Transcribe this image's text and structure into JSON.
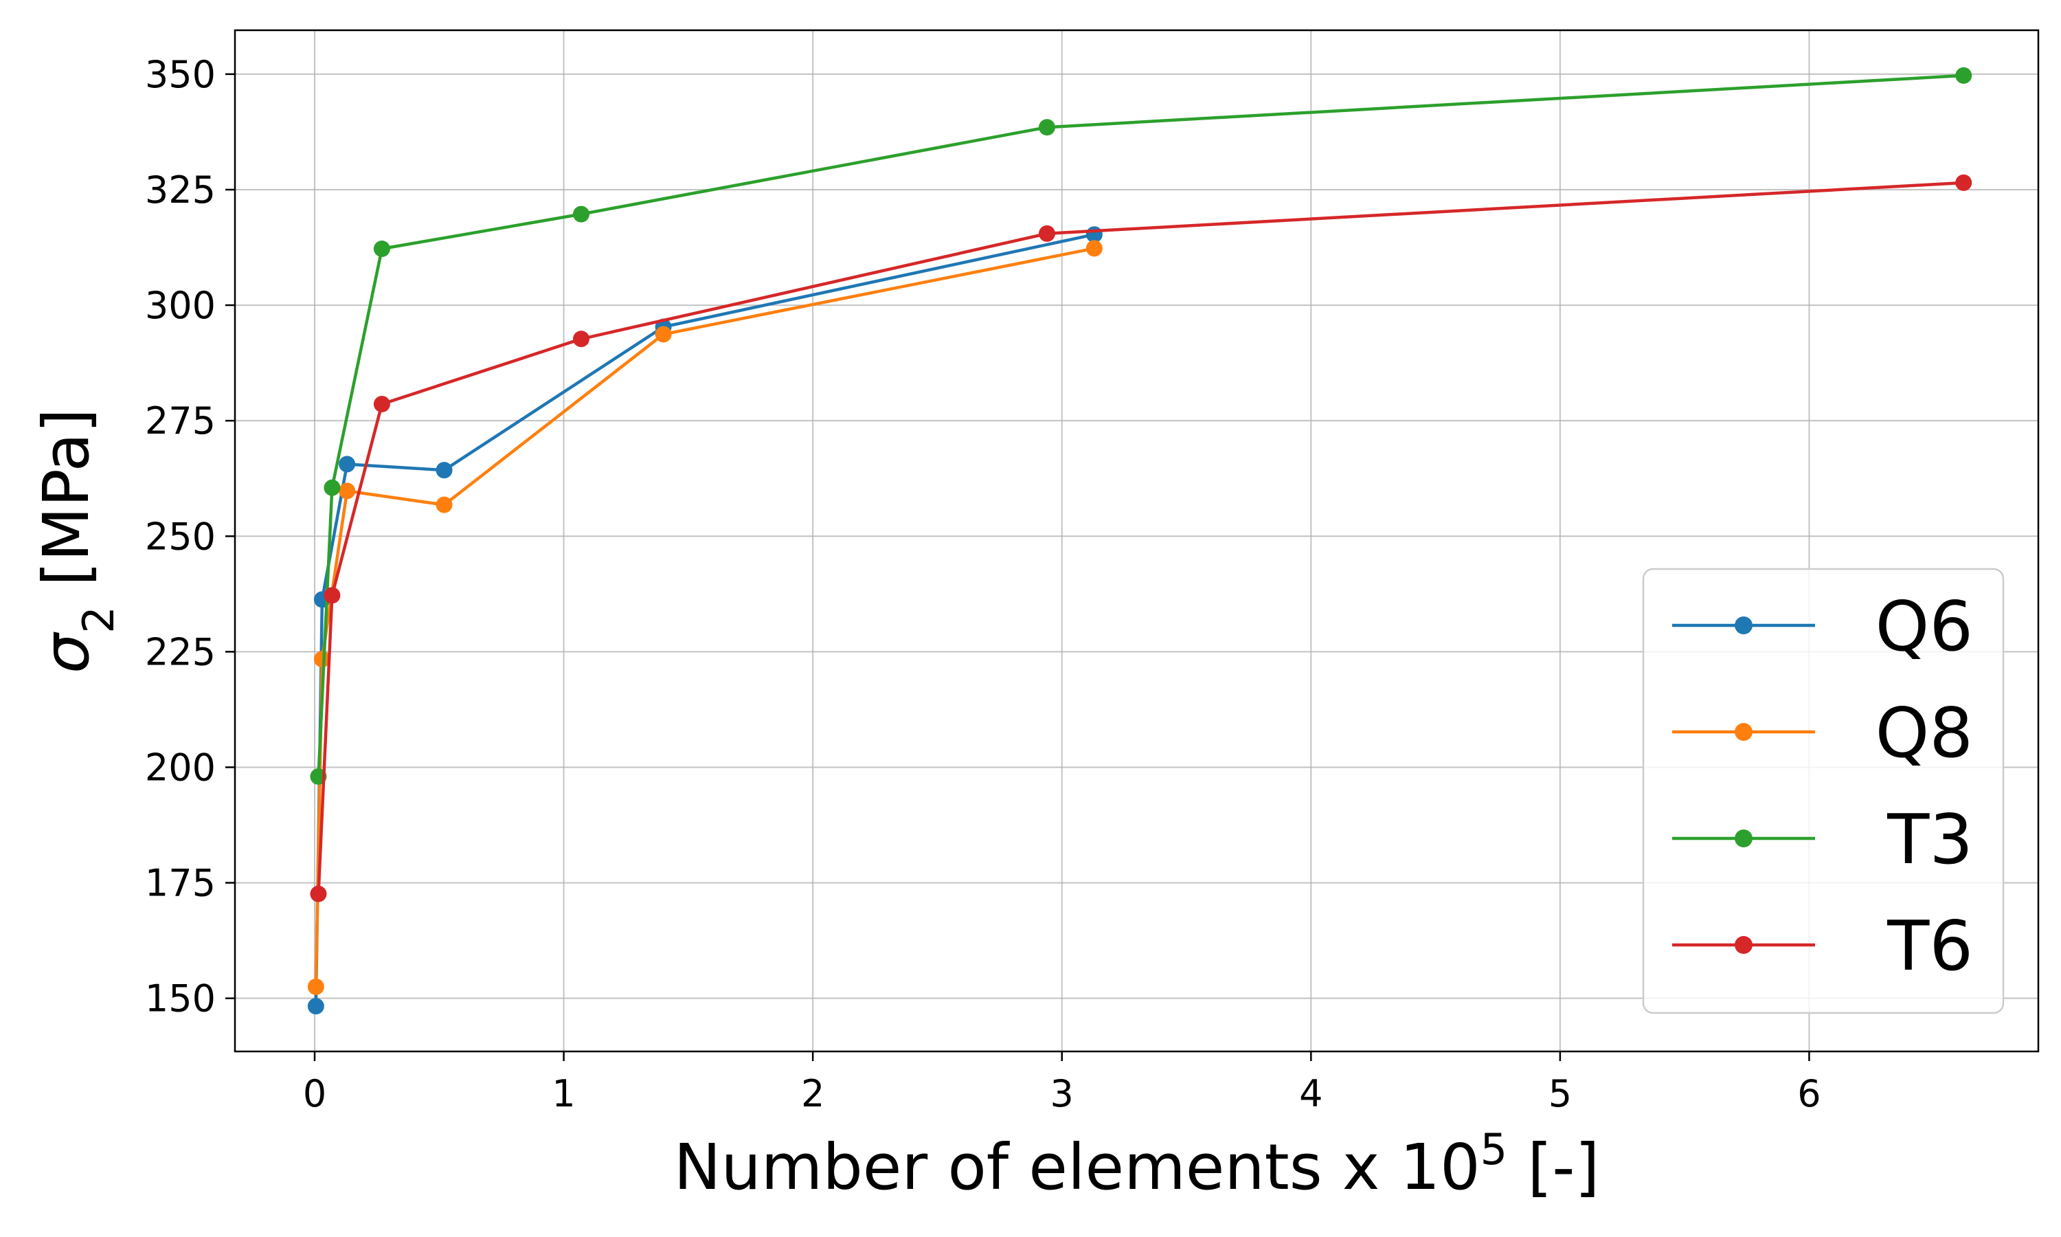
{
  "chart_data": {
    "type": "line",
    "xlabel": {
      "base": "Number of elements x 10",
      "sup": "5",
      "unit": " [-]"
    },
    "ylabel": {
      "symbol": "σ",
      "sub": "2",
      "unit": " [MPa]"
    },
    "xlim": [
      -0.32,
      6.92
    ],
    "ylim": [
      138.5,
      359.5
    ],
    "xticks": [
      0,
      1,
      2,
      3,
      4,
      5,
      6
    ],
    "yticks": [
      150,
      175,
      200,
      225,
      250,
      275,
      300,
      325,
      350
    ],
    "grid": true,
    "legend_position": "bottom-right",
    "series": [
      {
        "name": "Q6",
        "color": "#1f77b4",
        "x": [
          0.005,
          0.03,
          0.13,
          0.52,
          1.4,
          3.13
        ],
        "y": [
          148.3,
          236.3,
          265.6,
          264.3,
          295.3,
          315.3
        ]
      },
      {
        "name": "Q8",
        "color": "#ff7f0e",
        "x": [
          0.005,
          0.03,
          0.13,
          0.52,
          1.4,
          3.13
        ],
        "y": [
          152.5,
          223.4,
          259.8,
          256.8,
          293.7,
          312.3
        ]
      },
      {
        "name": "T3",
        "color": "#2ca02c",
        "x": [
          0.015,
          0.07,
          0.27,
          1.07,
          2.94,
          6.62
        ],
        "y": [
          198.0,
          260.5,
          312.2,
          319.7,
          338.5,
          349.7
        ]
      },
      {
        "name": "T6",
        "color": "#d62728",
        "x": [
          0.015,
          0.07,
          0.27,
          1.07,
          2.94,
          6.62
        ],
        "y": [
          172.6,
          237.2,
          278.6,
          292.7,
          315.5,
          326.5
        ]
      }
    ]
  }
}
